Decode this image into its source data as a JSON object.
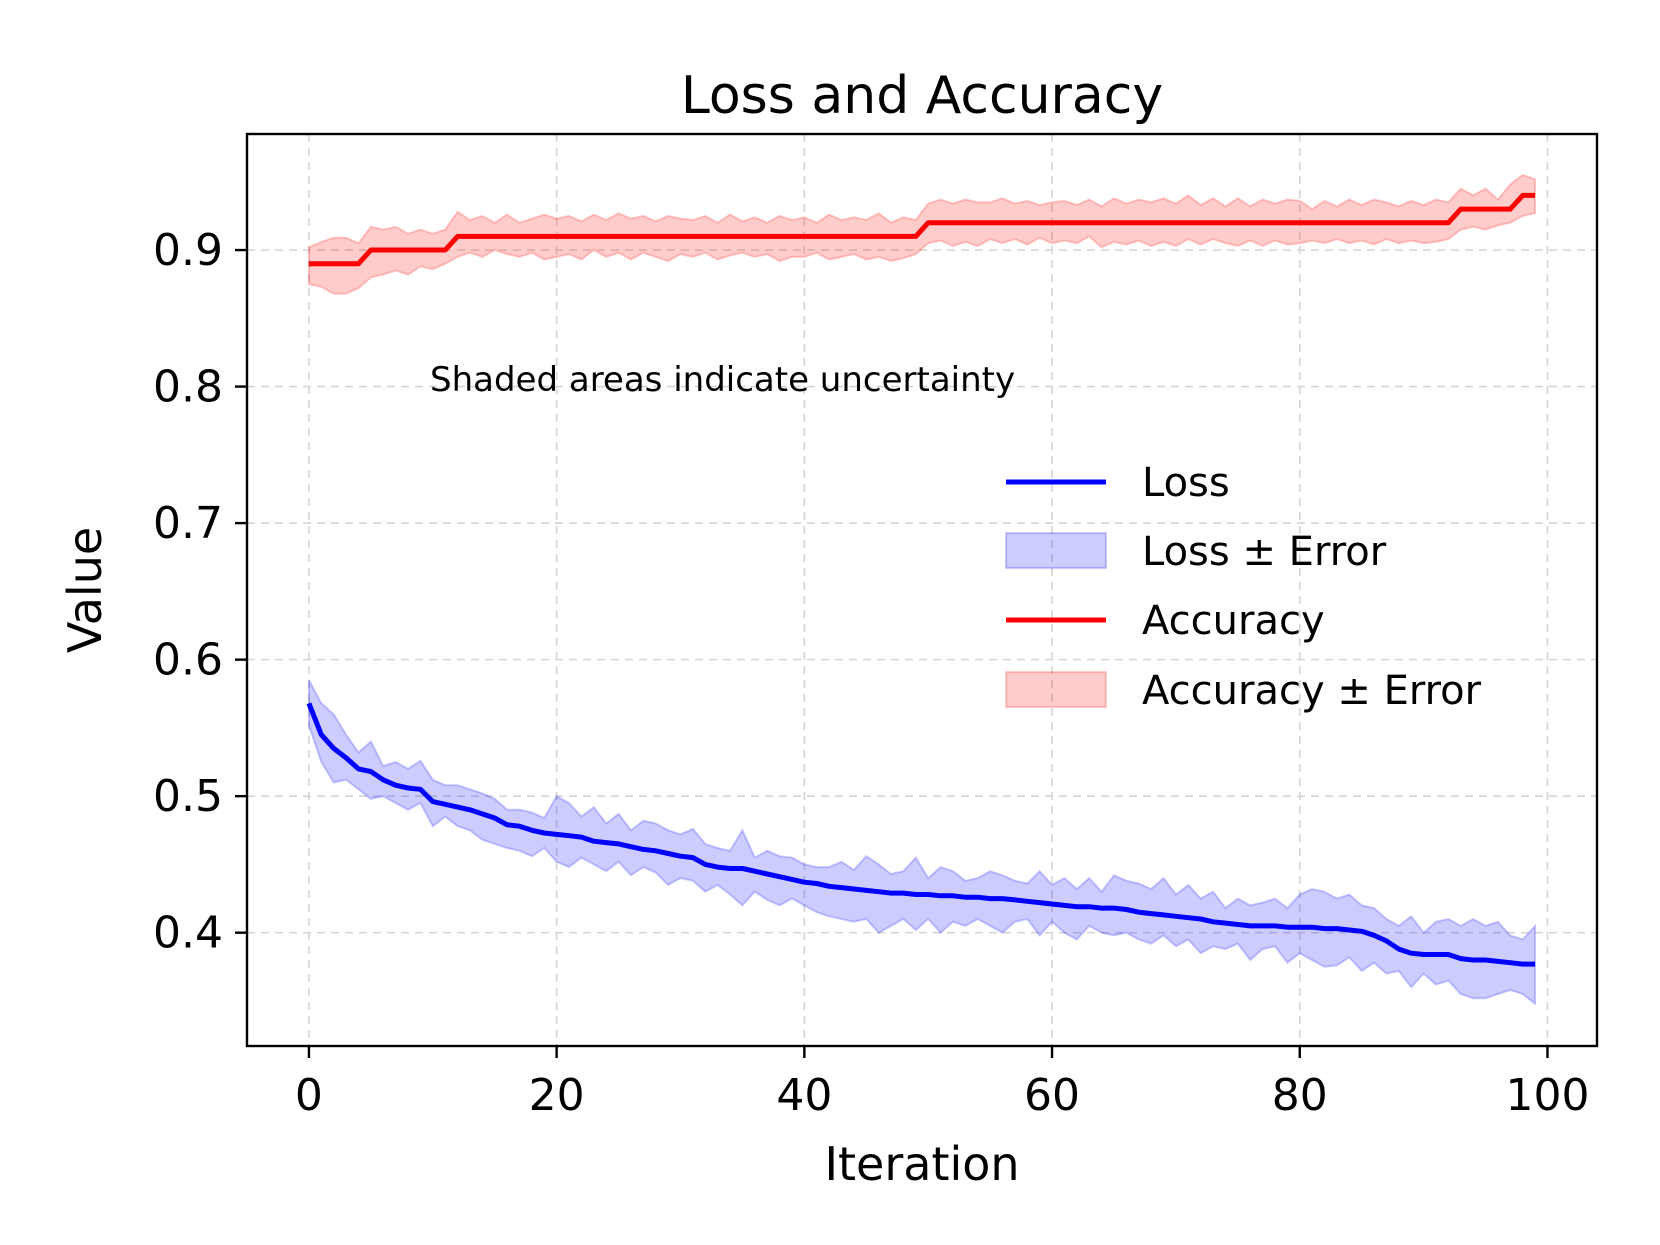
{
  "chart_data": {
    "type": "line",
    "title": "Loss and Accuracy",
    "xlabel": "Iteration",
    "ylabel": "Value",
    "xlim": [
      -5,
      104
    ],
    "ylim": [
      0.317,
      0.985
    ],
    "xticks": [
      0,
      20,
      40,
      60,
      80,
      100
    ],
    "yticks": [
      0.4,
      0.5,
      0.6,
      0.7,
      0.8,
      0.9
    ],
    "grid": true,
    "annotation": "Shaded areas indicate uncertainty",
    "legend_position": "center-right",
    "legend": [
      "Loss",
      "Loss ± Error",
      "Accuracy",
      "Accuracy ± Error"
    ],
    "colors": {
      "loss": "#0000ff",
      "loss_band": "#0000ff",
      "accuracy": "#ff0000",
      "accuracy_band": "#ff0000"
    },
    "series": [
      {
        "name": "Loss",
        "x": [
          0,
          1,
          2,
          3,
          4,
          5,
          6,
          7,
          8,
          9,
          10,
          11,
          12,
          13,
          14,
          15,
          16,
          17,
          18,
          19,
          20,
          21,
          22,
          23,
          24,
          25,
          26,
          27,
          28,
          29,
          30,
          31,
          32,
          33,
          34,
          35,
          36,
          37,
          38,
          39,
          40,
          41,
          42,
          43,
          44,
          45,
          46,
          47,
          48,
          49,
          50,
          51,
          52,
          53,
          54,
          55,
          56,
          57,
          58,
          59,
          60,
          61,
          62,
          63,
          64,
          65,
          66,
          67,
          68,
          69,
          70,
          71,
          72,
          73,
          74,
          75,
          76,
          77,
          78,
          79,
          80,
          81,
          82,
          83,
          84,
          85,
          86,
          87,
          88,
          89,
          90,
          91,
          92,
          93,
          94,
          95,
          96,
          97,
          98,
          99
        ],
        "values": [
          0.568,
          0.545,
          0.535,
          0.528,
          0.52,
          0.518,
          0.512,
          0.508,
          0.506,
          0.505,
          0.496,
          0.494,
          0.492,
          0.49,
          0.487,
          0.484,
          0.479,
          0.478,
          0.475,
          0.473,
          0.472,
          0.471,
          0.47,
          0.467,
          0.466,
          0.465,
          0.463,
          0.461,
          0.46,
          0.458,
          0.456,
          0.455,
          0.45,
          0.448,
          0.447,
          0.447,
          0.445,
          0.443,
          0.441,
          0.439,
          0.437,
          0.436,
          0.434,
          0.433,
          0.432,
          0.431,
          0.43,
          0.429,
          0.429,
          0.428,
          0.428,
          0.427,
          0.427,
          0.426,
          0.426,
          0.425,
          0.425,
          0.424,
          0.423,
          0.422,
          0.421,
          0.42,
          0.419,
          0.419,
          0.418,
          0.418,
          0.417,
          0.415,
          0.414,
          0.413,
          0.412,
          0.411,
          0.41,
          0.408,
          0.407,
          0.406,
          0.405,
          0.405,
          0.405,
          0.404,
          0.404,
          0.404,
          0.403,
          0.403,
          0.402,
          0.401,
          0.398,
          0.394,
          0.388,
          0.385,
          0.384,
          0.384,
          0.384,
          0.381,
          0.38,
          0.38,
          0.379,
          0.378,
          0.377,
          0.377
        ]
      },
      {
        "name": "Loss ± Error",
        "lower": [
          0.552,
          0.525,
          0.51,
          0.512,
          0.505,
          0.498,
          0.5,
          0.495,
          0.49,
          0.495,
          0.478,
          0.485,
          0.478,
          0.475,
          0.468,
          0.465,
          0.462,
          0.46,
          0.456,
          0.462,
          0.452,
          0.448,
          0.455,
          0.45,
          0.445,
          0.452,
          0.442,
          0.448,
          0.444,
          0.435,
          0.44,
          0.438,
          0.43,
          0.435,
          0.428,
          0.42,
          0.43,
          0.424,
          0.42,
          0.425,
          0.42,
          0.415,
          0.412,
          0.41,
          0.408,
          0.41,
          0.4,
          0.405,
          0.41,
          0.402,
          0.41,
          0.4,
          0.408,
          0.405,
          0.41,
          0.405,
          0.4,
          0.408,
          0.41,
          0.398,
          0.408,
          0.4,
          0.395,
          0.405,
          0.4,
          0.398,
          0.4,
          0.395,
          0.392,
          0.398,
          0.39,
          0.395,
          0.385,
          0.39,
          0.388,
          0.392,
          0.38,
          0.388,
          0.39,
          0.378,
          0.385,
          0.38,
          0.375,
          0.376,
          0.382,
          0.372,
          0.378,
          0.37,
          0.372,
          0.36,
          0.37,
          0.362,
          0.365,
          0.355,
          0.352,
          0.352,
          0.355,
          0.358,
          0.355,
          0.348
        ],
        "upper": [
          0.585,
          0.568,
          0.56,
          0.545,
          0.532,
          0.54,
          0.522,
          0.525,
          0.52,
          0.526,
          0.512,
          0.508,
          0.508,
          0.505,
          0.502,
          0.498,
          0.49,
          0.49,
          0.488,
          0.484,
          0.5,
          0.495,
          0.485,
          0.492,
          0.48,
          0.487,
          0.475,
          0.482,
          0.48,
          0.475,
          0.472,
          0.476,
          0.465,
          0.462,
          0.46,
          0.475,
          0.455,
          0.46,
          0.456,
          0.455,
          0.45,
          0.448,
          0.448,
          0.452,
          0.446,
          0.456,
          0.45,
          0.443,
          0.445,
          0.455,
          0.44,
          0.448,
          0.445,
          0.438,
          0.44,
          0.445,
          0.442,
          0.438,
          0.436,
          0.445,
          0.435,
          0.44,
          0.432,
          0.44,
          0.43,
          0.442,
          0.438,
          0.436,
          0.432,
          0.44,
          0.428,
          0.435,
          0.425,
          0.43,
          0.418,
          0.425,
          0.42,
          0.422,
          0.425,
          0.418,
          0.428,
          0.432,
          0.43,
          0.425,
          0.428,
          0.42,
          0.418,
          0.41,
          0.405,
          0.412,
          0.4,
          0.408,
          0.41,
          0.405,
          0.41,
          0.405,
          0.408,
          0.398,
          0.395,
          0.405
        ]
      },
      {
        "name": "Accuracy",
        "x": [
          0,
          1,
          2,
          3,
          4,
          5,
          6,
          7,
          8,
          9,
          10,
          11,
          12,
          13,
          14,
          15,
          16,
          17,
          18,
          19,
          20,
          21,
          22,
          23,
          24,
          25,
          26,
          27,
          28,
          29,
          30,
          31,
          32,
          33,
          34,
          35,
          36,
          37,
          38,
          39,
          40,
          41,
          42,
          43,
          44,
          45,
          46,
          47,
          48,
          49,
          50,
          51,
          52,
          53,
          54,
          55,
          56,
          57,
          58,
          59,
          60,
          61,
          62,
          63,
          64,
          65,
          66,
          67,
          68,
          69,
          70,
          71,
          72,
          73,
          74,
          75,
          76,
          77,
          78,
          79,
          80,
          81,
          82,
          83,
          84,
          85,
          86,
          87,
          88,
          89,
          90,
          91,
          92,
          93,
          94,
          95,
          96,
          97,
          98,
          99
        ],
        "values": [
          0.89,
          0.89,
          0.89,
          0.89,
          0.89,
          0.9,
          0.9,
          0.9,
          0.9,
          0.9,
          0.9,
          0.9,
          0.91,
          0.91,
          0.91,
          0.91,
          0.91,
          0.91,
          0.91,
          0.91,
          0.91,
          0.91,
          0.91,
          0.91,
          0.91,
          0.91,
          0.91,
          0.91,
          0.91,
          0.91,
          0.91,
          0.91,
          0.91,
          0.91,
          0.91,
          0.91,
          0.91,
          0.91,
          0.91,
          0.91,
          0.91,
          0.91,
          0.91,
          0.91,
          0.91,
          0.91,
          0.91,
          0.91,
          0.91,
          0.91,
          0.92,
          0.92,
          0.92,
          0.92,
          0.92,
          0.92,
          0.92,
          0.92,
          0.92,
          0.92,
          0.92,
          0.92,
          0.92,
          0.92,
          0.92,
          0.92,
          0.92,
          0.92,
          0.92,
          0.92,
          0.92,
          0.92,
          0.92,
          0.92,
          0.92,
          0.92,
          0.92,
          0.92,
          0.92,
          0.92,
          0.92,
          0.92,
          0.92,
          0.92,
          0.92,
          0.92,
          0.92,
          0.92,
          0.92,
          0.92,
          0.92,
          0.92,
          0.92,
          0.93,
          0.93,
          0.93,
          0.93,
          0.93,
          0.94,
          0.94
        ]
      },
      {
        "name": "Accuracy ± Error",
        "lower": [
          0.875,
          0.873,
          0.868,
          0.868,
          0.872,
          0.88,
          0.882,
          0.885,
          0.882,
          0.888,
          0.886,
          0.89,
          0.895,
          0.898,
          0.895,
          0.9,
          0.897,
          0.895,
          0.898,
          0.893,
          0.895,
          0.897,
          0.893,
          0.9,
          0.895,
          0.898,
          0.893,
          0.898,
          0.895,
          0.892,
          0.897,
          0.895,
          0.898,
          0.893,
          0.896,
          0.898,
          0.895,
          0.897,
          0.892,
          0.895,
          0.895,
          0.898,
          0.893,
          0.895,
          0.897,
          0.893,
          0.895,
          0.892,
          0.894,
          0.897,
          0.905,
          0.907,
          0.903,
          0.906,
          0.903,
          0.908,
          0.905,
          0.908,
          0.904,
          0.909,
          0.905,
          0.907,
          0.905,
          0.91,
          0.902,
          0.906,
          0.904,
          0.907,
          0.903,
          0.906,
          0.903,
          0.908,
          0.904,
          0.908,
          0.905,
          0.903,
          0.907,
          0.903,
          0.907,
          0.904,
          0.905,
          0.907,
          0.905,
          0.908,
          0.905,
          0.907,
          0.904,
          0.908,
          0.905,
          0.907,
          0.905,
          0.906,
          0.908,
          0.915,
          0.917,
          0.915,
          0.918,
          0.92,
          0.925,
          0.927
        ],
        "upper": [
          0.902,
          0.906,
          0.909,
          0.909,
          0.905,
          0.917,
          0.915,
          0.917,
          0.912,
          0.915,
          0.912,
          0.915,
          0.928,
          0.922,
          0.925,
          0.92,
          0.926,
          0.92,
          0.923,
          0.926,
          0.923,
          0.925,
          0.921,
          0.926,
          0.922,
          0.927,
          0.923,
          0.925,
          0.921,
          0.925,
          0.923,
          0.922,
          0.925,
          0.92,
          0.926,
          0.921,
          0.924,
          0.92,
          0.925,
          0.922,
          0.924,
          0.92,
          0.926,
          0.922,
          0.924,
          0.922,
          0.927,
          0.92,
          0.924,
          0.922,
          0.934,
          0.937,
          0.934,
          0.937,
          0.935,
          0.935,
          0.938,
          0.934,
          0.936,
          0.933,
          0.935,
          0.936,
          0.933,
          0.937,
          0.932,
          0.938,
          0.934,
          0.937,
          0.935,
          0.938,
          0.934,
          0.94,
          0.933,
          0.938,
          0.932,
          0.938,
          0.932,
          0.937,
          0.934,
          0.937,
          0.936,
          0.93,
          0.936,
          0.932,
          0.937,
          0.933,
          0.937,
          0.935,
          0.932,
          0.936,
          0.933,
          0.937,
          0.935,
          0.945,
          0.94,
          0.945,
          0.937,
          0.948,
          0.955,
          0.952
        ]
      }
    ]
  }
}
